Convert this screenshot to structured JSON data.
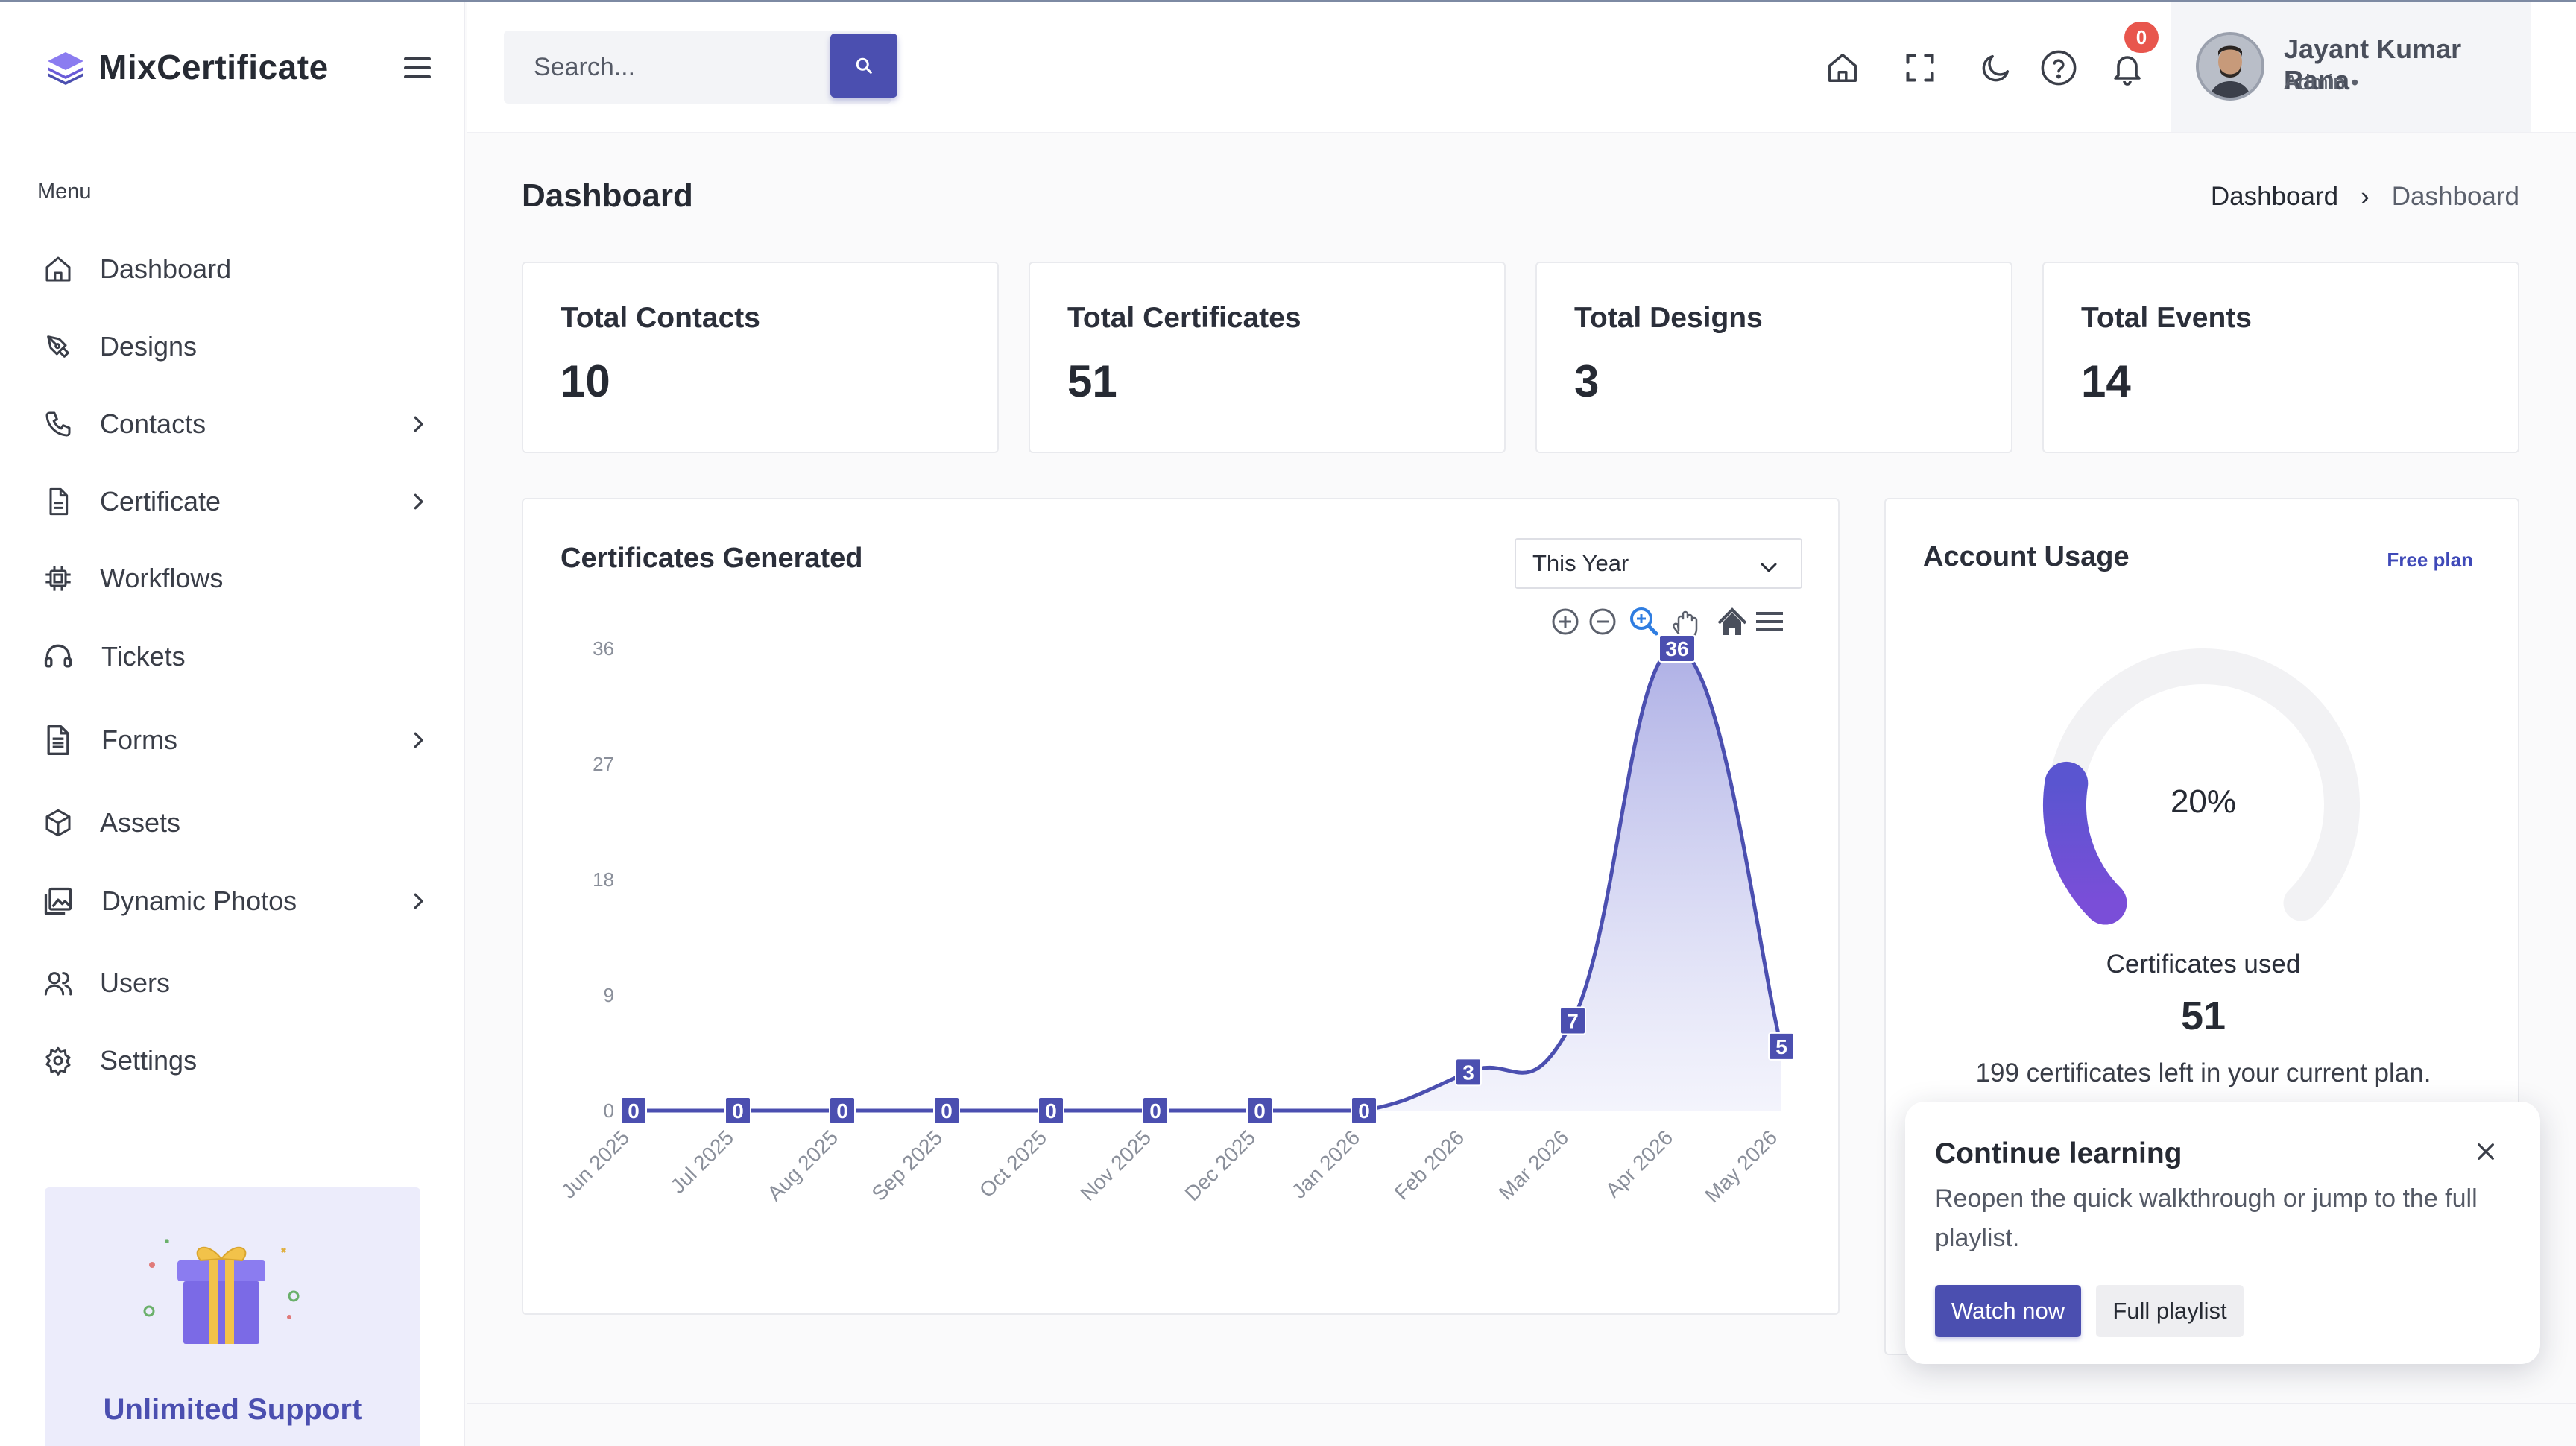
{
  "app": {
    "name": "MixCertificate"
  },
  "sidebar": {
    "menu_heading": "Menu",
    "items": [
      {
        "label": "Dashboard",
        "icon": "home-icon",
        "has_submenu": false
      },
      {
        "label": "Designs",
        "icon": "pen-tool-icon",
        "has_submenu": false
      },
      {
        "label": "Contacts",
        "icon": "phone-icon",
        "has_submenu": true
      },
      {
        "label": "Certificate",
        "icon": "file-icon",
        "has_submenu": true
      },
      {
        "label": "Workflows",
        "icon": "cpu-icon",
        "has_submenu": false
      },
      {
        "label": "Tickets",
        "icon": "headset-icon",
        "has_submenu": false
      },
      {
        "label": "Forms",
        "icon": "document-icon",
        "has_submenu": true
      },
      {
        "label": "Assets",
        "icon": "cube-icon",
        "has_submenu": false
      },
      {
        "label": "Dynamic Photos",
        "icon": "gallery-icon",
        "has_submenu": true
      },
      {
        "label": "Users",
        "icon": "users-icon",
        "has_submenu": false
      },
      {
        "label": "Settings",
        "icon": "gear-icon",
        "has_submenu": false
      }
    ],
    "promo": {
      "title": "Unlimited Support",
      "icon": "gift-icon"
    }
  },
  "header": {
    "search": {
      "placeholder": "Search...",
      "value": ""
    },
    "notifications": {
      "count": "0"
    },
    "user": {
      "name": "Jayant Kumar Rana",
      "role": "Admin •"
    }
  },
  "page": {
    "title": "Dashboard",
    "breadcrumb": {
      "parent": "Dashboard",
      "separator": "›",
      "current": "Dashboard"
    }
  },
  "stats": [
    {
      "label": "Total Contacts",
      "value": "10"
    },
    {
      "label": "Total Certificates",
      "value": "51"
    },
    {
      "label": "Total Designs",
      "value": "3"
    },
    {
      "label": "Total Events",
      "value": "14"
    }
  ],
  "chart_card": {
    "title": "Certificates Generated",
    "period": "This Year"
  },
  "chart_data": {
    "type": "area",
    "title": "Certificates Generated",
    "categories": [
      "Jun 2025",
      "Jul 2025",
      "Aug 2025",
      "Sep 2025",
      "Oct 2025",
      "Nov 2025",
      "Dec 2025",
      "Jan 2026",
      "Feb 2026",
      "Mar 2026",
      "Apr 2026",
      "May 2026"
    ],
    "values": [
      0,
      0,
      0,
      0,
      0,
      0,
      0,
      0,
      3,
      7,
      36,
      5
    ],
    "yticks": [
      0,
      9,
      18,
      27,
      36
    ],
    "ylim": [
      0,
      36
    ],
    "grid": false,
    "data_labels": true,
    "color": "#4b4fb0"
  },
  "usage": {
    "title": "Account Usage",
    "plan": "Free plan",
    "percent_label": "20%",
    "percent": 20,
    "label": "Certificates used",
    "count": "51",
    "note": "199 certificates left in your current plan."
  },
  "popup": {
    "title": "Continue learning",
    "text": "Reopen the quick walkthrough or jump to the full playlist.",
    "primary": "Watch now",
    "secondary": "Full playlist"
  },
  "colors": {
    "accent": "#4b4fb0",
    "badge": "#e8564d",
    "plan": "#3f49b8"
  }
}
